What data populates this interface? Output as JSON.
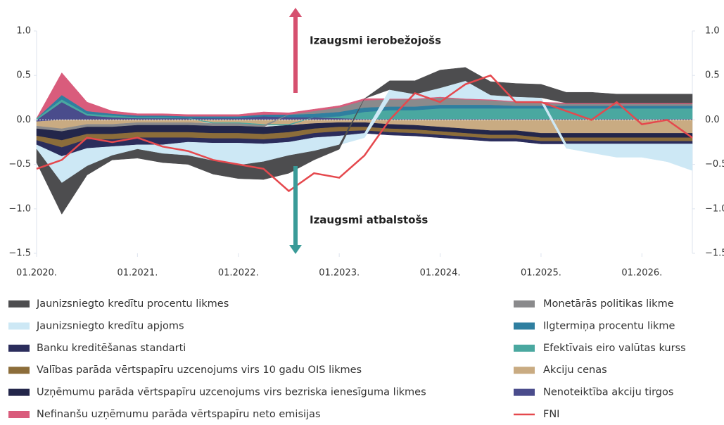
{
  "chart_data": {
    "type": "stacked-area",
    "annotations": [
      "Izaugsmi ierobežojošs",
      "Izaugsmi atbalstošs"
    ],
    "x": [
      "2020-01",
      "2020-04",
      "2020-07",
      "2020-10",
      "2021-01",
      "2021-04",
      "2021-07",
      "2021-10",
      "2022-01",
      "2022-04",
      "2022-07",
      "2022-10",
      "2023-01",
      "2023-04",
      "2023-07",
      "2023-10",
      "2024-01",
      "2024-04",
      "2024-07",
      "2024-10",
      "2025-01",
      "2025-04",
      "2025-07",
      "2025-10",
      "2026-01",
      "2026-04",
      "2026-07"
    ],
    "xlim": [
      "2020-01",
      "2026-07"
    ],
    "xticks": [
      {
        "value": "2020-01",
        "label": "01.2020."
      },
      {
        "value": "2021-01",
        "label": "01.2021."
      },
      {
        "value": "2022-01",
        "label": "01.2022."
      },
      {
        "value": "2023-01",
        "label": "01.2023."
      },
      {
        "value": "2024-01",
        "label": "01.2024."
      },
      {
        "value": "2025-01",
        "label": "01.2025."
      },
      {
        "value": "2026-01",
        "label": "01.2026."
      }
    ],
    "ylim": [
      -1.5,
      1.0
    ],
    "yticks": [
      {
        "value": -1.5,
        "label": "−1.5"
      },
      {
        "value": -1.0,
        "label": "−1.0"
      },
      {
        "value": -0.5,
        "label": "−0.5"
      },
      {
        "value": 0.0,
        "label": "0.0"
      },
      {
        "value": 0.5,
        "label": "0.5"
      },
      {
        "value": 1.0,
        "label": "1.0"
      }
    ],
    "series": [
      {
        "name": "Jaunizsniegto kredītu procentu likmes",
        "color": "#4d4d4f",
        "values": [
          -0.15,
          -0.35,
          -0.1,
          -0.05,
          -0.1,
          -0.1,
          -0.1,
          -0.15,
          -0.15,
          -0.2,
          -0.2,
          -0.1,
          -0.05,
          0.0,
          0.1,
          0.15,
          0.2,
          0.15,
          0.15,
          0.15,
          0.15,
          0.12,
          0.12,
          0.1,
          0.1,
          0.1,
          0.1
        ]
      },
      {
        "name": "Jaunizsniegto kredītu apjoms",
        "color": "#cde8f5",
        "values": [
          -0.05,
          -0.3,
          -0.2,
          -0.1,
          -0.05,
          -0.1,
          -0.15,
          -0.2,
          -0.25,
          -0.2,
          -0.15,
          -0.15,
          -0.1,
          -0.05,
          0.1,
          0.05,
          0.1,
          0.2,
          0.05,
          0.05,
          0.05,
          -0.05,
          -0.1,
          -0.15,
          -0.15,
          -0.2,
          -0.3
        ]
      },
      {
        "name": "Banku kreditēšanas standarti",
        "color": "#2b2d5c",
        "values": [
          -0.05,
          -0.1,
          -0.1,
          -0.08,
          -0.08,
          -0.08,
          -0.05,
          -0.05,
          -0.05,
          -0.05,
          -0.05,
          -0.05,
          -0.05,
          -0.03,
          -0.03,
          -0.03,
          -0.03,
          -0.03,
          -0.03,
          -0.03,
          -0.03,
          -0.03,
          -0.03,
          -0.03,
          -0.03,
          -0.03,
          -0.03
        ]
      },
      {
        "name": "Valības parāda vērtspapīru uzcenojums virs 10 gadu OIS likmes",
        "color": "#8c6d3a",
        "values": [
          -0.05,
          -0.08,
          -0.06,
          -0.06,
          -0.06,
          -0.06,
          -0.06,
          -0.06,
          -0.06,
          -0.06,
          -0.06,
          -0.05,
          -0.05,
          -0.04,
          -0.04,
          -0.04,
          -0.04,
          -0.04,
          -0.04,
          -0.04,
          -0.04,
          -0.04,
          -0.04,
          -0.04,
          -0.04,
          -0.04,
          -0.04
        ]
      },
      {
        "name": "Uzņēmumu parāda vērtspapīru uzcenojums virs bezriska ienesīguma likmes",
        "color": "#23264a",
        "values": [
          -0.08,
          -0.1,
          -0.08,
          -0.08,
          -0.08,
          -0.08,
          -0.08,
          -0.08,
          -0.08,
          -0.08,
          -0.08,
          -0.06,
          -0.05,
          -0.05,
          -0.05,
          -0.05,
          -0.05,
          -0.05,
          -0.05,
          -0.05,
          -0.05,
          -0.05,
          -0.05,
          -0.05,
          -0.05,
          -0.05,
          -0.05
        ]
      },
      {
        "name": "Nefinanšu uzņēmumu parāda vērtspapīru neto emisijas",
        "color": "#d95c7c",
        "values": [
          0.0,
          0.25,
          0.1,
          0.03,
          0.02,
          0.02,
          0.02,
          0.02,
          0.02,
          0.03,
          0.02,
          0.02,
          0.02,
          0.02,
          0.01,
          0.01,
          0.01,
          0.01,
          0.01,
          0.01,
          0.01,
          0.01,
          0.01,
          0.01,
          0.01,
          0.01,
          0.01
        ]
      },
      {
        "name": "Monetārās politikas likme",
        "color": "#8a8a8c",
        "values": [
          -0.03,
          -0.03,
          -0.03,
          -0.03,
          -0.03,
          -0.03,
          -0.03,
          -0.03,
          -0.03,
          -0.02,
          0.0,
          0.03,
          0.05,
          0.08,
          0.08,
          0.08,
          0.08,
          0.06,
          0.05,
          0.04,
          0.03,
          0.02,
          0.02,
          0.02,
          0.02,
          0.02,
          0.02
        ]
      },
      {
        "name": "Ilgtermiņa procentu likme",
        "color": "#2f7fa0",
        "values": [
          0.0,
          0.05,
          0.03,
          0.02,
          0.02,
          0.02,
          0.02,
          0.02,
          0.02,
          0.02,
          0.03,
          0.04,
          0.05,
          0.05,
          0.04,
          0.04,
          0.04,
          0.04,
          0.04,
          0.03,
          0.03,
          0.03,
          0.03,
          0.03,
          0.03,
          0.03,
          0.03
        ]
      },
      {
        "name": "Efektīvais eiro valūtas kurss",
        "color": "#4aa8a0",
        "values": [
          0.02,
          0.03,
          0.02,
          0.02,
          0.01,
          0.01,
          0.0,
          -0.01,
          -0.01,
          -0.01,
          -0.01,
          0.0,
          0.02,
          0.08,
          0.1,
          0.1,
          0.12,
          0.12,
          0.12,
          0.12,
          0.12,
          0.12,
          0.12,
          0.12,
          0.12,
          0.12,
          0.12
        ]
      },
      {
        "name": "Akciju cenas",
        "color": "#c9ab82",
        "values": [
          -0.05,
          -0.1,
          -0.05,
          -0.05,
          -0.03,
          -0.03,
          -0.03,
          -0.03,
          -0.03,
          -0.05,
          -0.05,
          -0.04,
          -0.03,
          -0.03,
          -0.05,
          -0.06,
          -0.08,
          -0.1,
          -0.12,
          -0.12,
          -0.15,
          -0.15,
          -0.15,
          -0.15,
          -0.15,
          -0.15,
          -0.15
        ]
      },
      {
        "name": "Nenoteiktība akciju tirgos",
        "color": "#4a4c8c",
        "values": [
          -0.02,
          0.2,
          0.05,
          0.03,
          0.02,
          0.02,
          0.02,
          0.02,
          0.02,
          0.04,
          0.03,
          0.03,
          0.02,
          0.01,
          0.01,
          0.01,
          0.01,
          0.01,
          0.01,
          0.01,
          0.01,
          0.01,
          0.01,
          0.01,
          0.01,
          0.01,
          0.01
        ]
      },
      {
        "name": "FNI",
        "color": "#e5484d",
        "line": true,
        "values": [
          -0.55,
          -0.45,
          -0.2,
          -0.25,
          -0.2,
          -0.3,
          -0.35,
          -0.45,
          -0.5,
          -0.55,
          -0.8,
          -0.6,
          -0.65,
          -0.4,
          0.0,
          0.3,
          0.2,
          0.4,
          0.5,
          0.2,
          0.2,
          0.1,
          0.0,
          0.2,
          -0.05,
          0.0,
          -0.2
        ]
      }
    ]
  }
}
